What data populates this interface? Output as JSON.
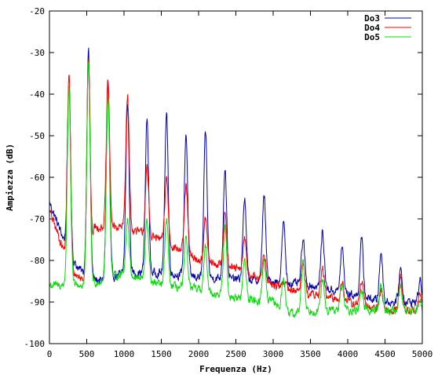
{
  "chart_data": {
    "type": "line",
    "title": "",
    "xlabel": "Frequenza (Hz)",
    "ylabel": "Ampiezza (dB)",
    "xlim": [
      0,
      5000
    ],
    "ylim": [
      -100,
      -20
    ],
    "xticks": [
      0,
      500,
      1000,
      1500,
      2000,
      2500,
      3000,
      3500,
      4000,
      4500,
      5000
    ],
    "yticks": [
      -100,
      -90,
      -80,
      -70,
      -60,
      -50,
      -40,
      -30,
      -20
    ],
    "grid": false,
    "legend_position": "top-right",
    "series": [
      {
        "name": "Do3",
        "color": "#0000b0",
        "fundamental_hz": 261.6,
        "peaks": [
          [
            261.6,
            -38
          ],
          [
            523.2,
            -29.5
          ],
          [
            784.8,
            -37
          ],
          [
            1046.4,
            -42
          ],
          [
            1308,
            -46
          ],
          [
            1569.6,
            -44
          ],
          [
            1831.2,
            -49.5
          ],
          [
            2092.8,
            -49
          ],
          [
            2354.4,
            -57.5
          ],
          [
            2616,
            -65
          ],
          [
            2877.6,
            -64
          ],
          [
            3139.2,
            -71
          ],
          [
            3400.8,
            -75
          ],
          [
            3662.4,
            -73
          ],
          [
            3924,
            -77
          ],
          [
            4185.6,
            -75
          ],
          [
            4447.2,
            -78
          ],
          [
            4708.8,
            -82
          ],
          [
            4970.4,
            -85
          ]
        ],
        "floor": [
          [
            0,
            -66
          ],
          [
            300,
            -80
          ],
          [
            500,
            -84
          ],
          [
            700,
            -85
          ],
          [
            1000,
            -83
          ],
          [
            1500,
            -83
          ],
          [
            2000,
            -84
          ],
          [
            2500,
            -84.5
          ],
          [
            3000,
            -85
          ],
          [
            3500,
            -86
          ],
          [
            4000,
            -88
          ],
          [
            4500,
            -90
          ],
          [
            5000,
            -90
          ]
        ]
      },
      {
        "name": "Do4",
        "color": "#ff0000",
        "fundamental_hz": 261.6,
        "peaks": [
          [
            261.6,
            -35
          ],
          [
            523.2,
            -31
          ],
          [
            784.8,
            -37
          ],
          [
            1046.4,
            -40
          ],
          [
            1308,
            -58
          ],
          [
            1569.6,
            -60
          ],
          [
            1831.2,
            -62
          ],
          [
            2092.8,
            -70
          ],
          [
            2354.4,
            -68
          ],
          [
            2616,
            -75
          ],
          [
            2877.6,
            -78
          ],
          [
            3139.2,
            -85
          ],
          [
            3400.8,
            -80
          ],
          [
            3662.4,
            -82
          ],
          [
            3924,
            -85
          ],
          [
            4185.6,
            -85
          ],
          [
            4447.2,
            -87
          ],
          [
            4708.8,
            -84
          ],
          [
            4970.4,
            -88
          ]
        ],
        "floor": [
          [
            0,
            -68
          ],
          [
            300,
            -83
          ],
          [
            500,
            -85
          ],
          [
            600,
            -72
          ],
          [
            1000,
            -72
          ],
          [
            1500,
            -75
          ],
          [
            2000,
            -80
          ],
          [
            2500,
            -82
          ],
          [
            3000,
            -86
          ],
          [
            3500,
            -88
          ],
          [
            4000,
            -90
          ],
          [
            4500,
            -92
          ],
          [
            5000,
            -92
          ]
        ]
      },
      {
        "name": "Do5",
        "color": "#00e000",
        "fundamental_hz": 523.2,
        "peaks": [
          [
            261.6,
            -38
          ],
          [
            523.2,
            -33
          ],
          [
            784.8,
            -40
          ],
          [
            1046.4,
            -70
          ],
          [
            1308,
            -70
          ],
          [
            1569.6,
            -70
          ],
          [
            1831.2,
            -75
          ],
          [
            2092.8,
            -77
          ],
          [
            2354.4,
            -72
          ],
          [
            2616,
            -80
          ],
          [
            2877.6,
            -80
          ],
          [
            3139.2,
            -84
          ],
          [
            3400.8,
            -80
          ],
          [
            3662.4,
            -85
          ],
          [
            3924,
            -86
          ],
          [
            4185.6,
            -87
          ],
          [
            4447.2,
            -86
          ],
          [
            4708.8,
            -86
          ],
          [
            4970.4,
            -90
          ]
        ],
        "floor": [
          [
            0,
            -86
          ],
          [
            500,
            -86
          ],
          [
            1000,
            -83
          ],
          [
            1500,
            -86
          ],
          [
            2000,
            -87
          ],
          [
            2500,
            -89
          ],
          [
            3000,
            -90
          ],
          [
            3200,
            -93
          ],
          [
            3500,
            -92
          ],
          [
            4000,
            -92
          ],
          [
            4500,
            -92
          ],
          [
            5000,
            -92
          ]
        ]
      }
    ]
  }
}
